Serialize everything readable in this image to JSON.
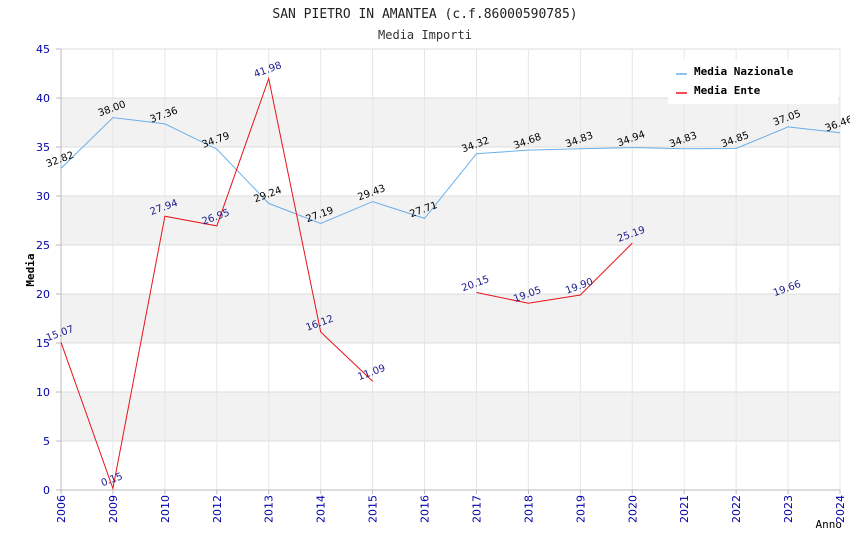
{
  "chart_data": {
    "type": "line",
    "title": "SAN PIETRO IN AMANTEA (c.f.86000590785)",
    "subtitle": "Media Importi",
    "xlabel": "Anno",
    "ylabel": "Media",
    "ylim": [
      0,
      45
    ],
    "y_ticks": [
      0,
      5,
      10,
      15,
      20,
      25,
      30,
      35,
      40,
      45
    ],
    "categories": [
      "2006",
      "2009",
      "2010",
      "2012",
      "2013",
      "2014",
      "2015",
      "2016",
      "2017",
      "2018",
      "2019",
      "2020",
      "2021",
      "2022",
      "2023",
      "2024"
    ],
    "grid": true,
    "legend_position": "top-right",
    "series": [
      {
        "name": "Media Nazionale",
        "color": "#6aaee8",
        "label_color": "#000000",
        "values": [
          32.82,
          38.0,
          37.36,
          34.79,
          29.24,
          27.19,
          29.43,
          27.71,
          34.32,
          34.68,
          34.83,
          34.94,
          34.83,
          34.85,
          37.05,
          36.46
        ],
        "labels": [
          "32.82",
          "38.00",
          "37.36",
          "34.79",
          "29.24",
          "27.19",
          "29.43",
          "27.71",
          "34.32",
          "34.68",
          "34.83",
          "34.94",
          "34.83",
          "34.85",
          "37.05",
          "36.46"
        ]
      },
      {
        "name": "Media Ente",
        "color": "#e8131b",
        "label_color": "#1a1a8c",
        "values": [
          15.07,
          0.15,
          27.94,
          26.95,
          41.98,
          16.12,
          11.09,
          null,
          20.15,
          19.05,
          19.9,
          25.19,
          null,
          null,
          19.66,
          null
        ],
        "labels": [
          "15.07",
          "0.15",
          "27.94",
          "26.95",
          "41.98",
          "16.12",
          "11.09",
          null,
          "20.15",
          "19.05",
          "19.90",
          "25.19",
          null,
          null,
          "19.66",
          null
        ]
      }
    ]
  }
}
